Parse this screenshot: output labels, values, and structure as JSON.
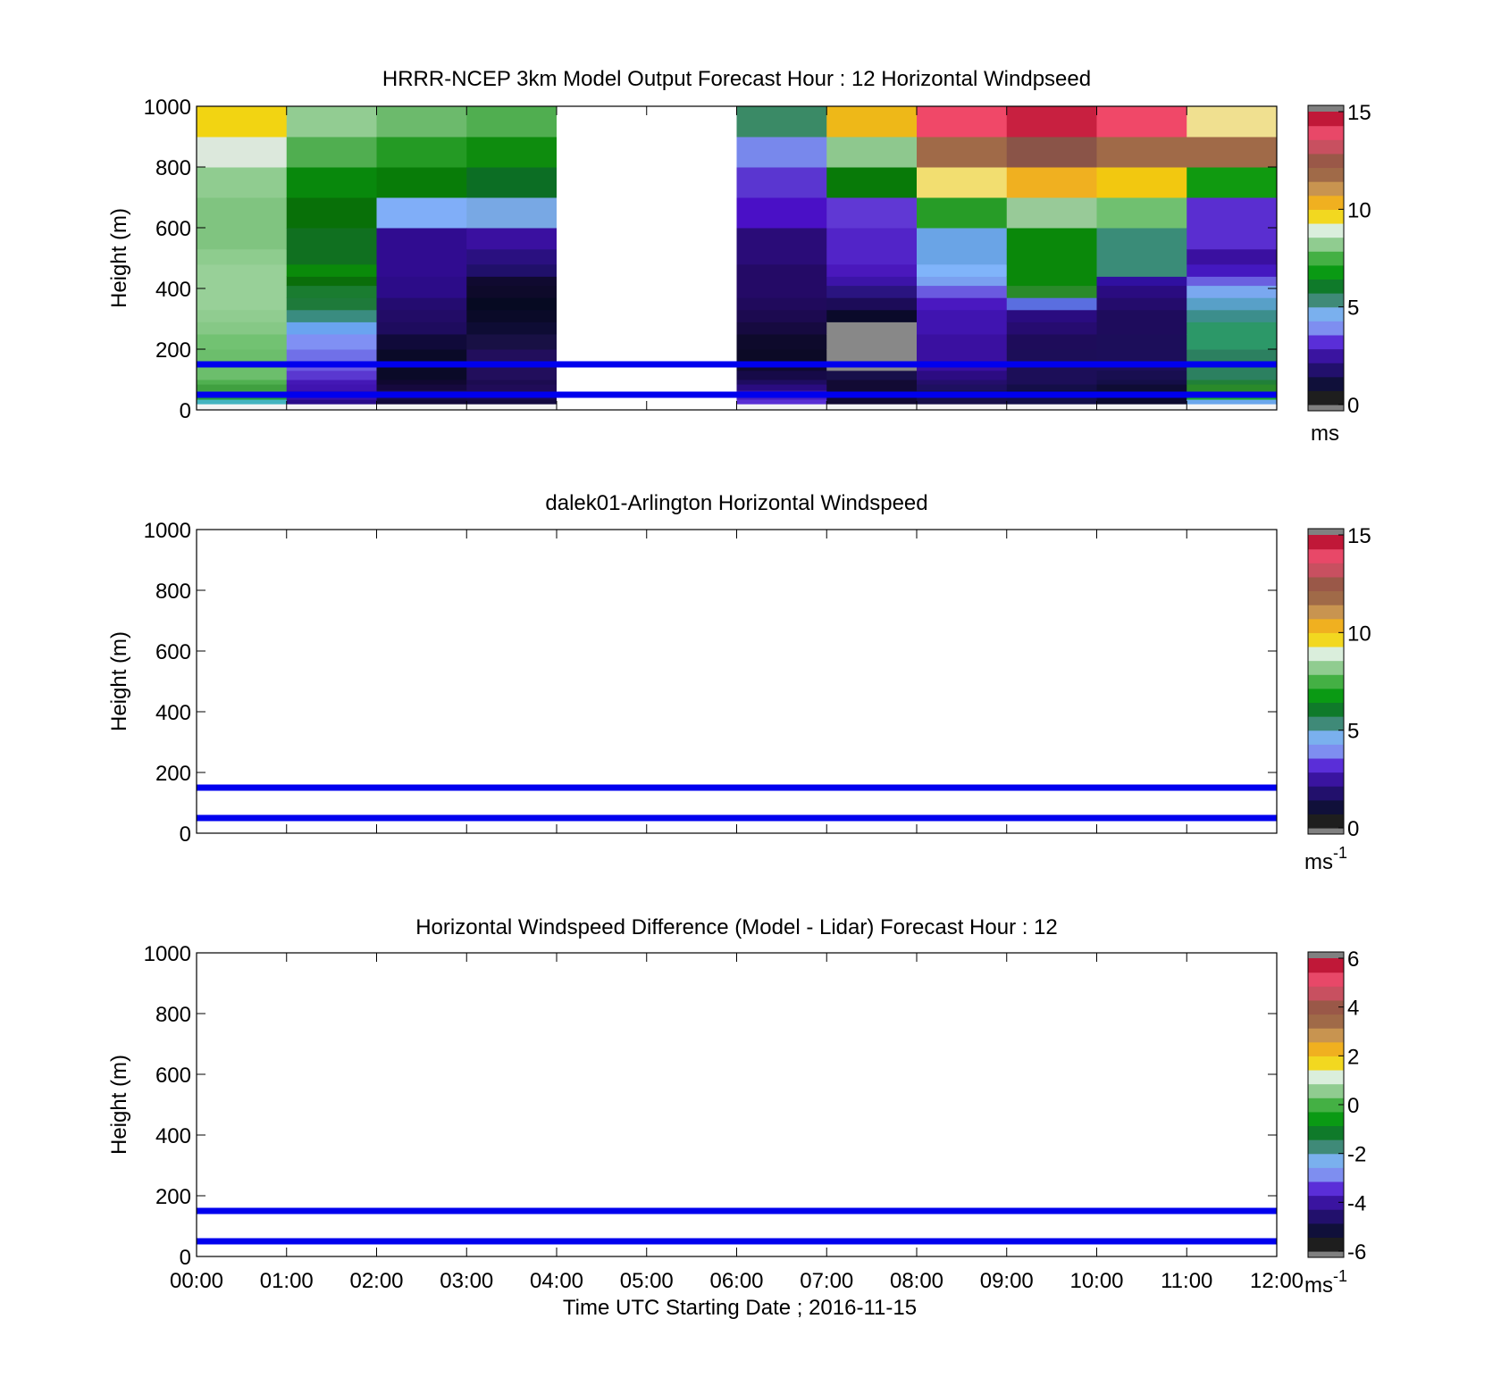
{
  "time_axis": {
    "ticks": [
      "00:00",
      "01:00",
      "02:00",
      "03:00",
      "04:00",
      "05:00",
      "06:00",
      "07:00",
      "08:00",
      "09:00",
      "10:00",
      "11:00",
      "12:00"
    ],
    "xlabel": "Time UTC  Starting Date ; 2016-11-15",
    "range_hours": [
      0,
      12
    ]
  },
  "palette": [
    "#1e1e1e",
    "#10103a",
    "#22106c",
    "#3a14a0",
    "#5a2ed8",
    "#7e8ef0",
    "#7ab0ee",
    "#3f8a78",
    "#0f7a2a",
    "#0a9a14",
    "#44b044",
    "#90cc90",
    "#daeedc",
    "#f2d820",
    "#f0b020",
    "#c89450",
    "#a06a48",
    "#9a5848",
    "#c85060",
    "#e84868",
    "#c01838",
    "#8a8a8a"
  ],
  "chart_data": [
    {
      "type": "heatmap",
      "title": "HRRR-NCEP 3km Model Output   Forecast Hour : 12 Horizontal Windpseed",
      "ylabel": "Height (m)",
      "xlim": [
        0,
        12
      ],
      "ylim": [
        0,
        1000
      ],
      "yticks": [
        "0",
        "200",
        "400",
        "600",
        "800",
        "1000"
      ],
      "colorbar": {
        "ticks": [
          "0",
          "5",
          "10",
          "15"
        ],
        "unit": "ms",
        "unit_sup": "",
        "range": [
          0,
          15
        ],
        "over_under_color": "#808080"
      },
      "reference_lines_m": [
        50,
        150
      ],
      "reference_line_color": "#0000ee",
      "heights_m": [
        0,
        20,
        35,
        50,
        65,
        85,
        100,
        130,
        150,
        200,
        250,
        290,
        330,
        370,
        410,
        440,
        480,
        530,
        600,
        700,
        800,
        900,
        1000
      ],
      "columns": [
        {
          "x0": 0,
          "x1": 1,
          "cells": [
            "#f4f4f4",
            "#44b4c0",
            "#2a9c3c",
            "#44a844",
            "#40a040",
            "#50b050",
            "#6cbe6c",
            "#6cbe6c",
            "#6cbe6c",
            "#72c272",
            "#86c886",
            "#90cc90",
            "#98d098",
            "#98d098",
            "#98d098",
            "#98d098",
            "#8ecc8e",
            "#80c480",
            "#80c480",
            "#90cc90",
            "#dce8dc",
            "#f2d412",
            "#eaa820"
          ]
        },
        {
          "x0": 1,
          "x1": 2,
          "cells": [
            "#f4f4f4",
            "#2a0c8a",
            "#3a10a8",
            "#3a10a8",
            "#4014b0",
            "#4418b6",
            "#5a38d0",
            "#6a5ae0",
            "#7070e8",
            "#8090f4",
            "#6aa4f0",
            "#3a8c80",
            "#1e7a3a",
            "#1a7c30",
            "#0a6e0a",
            "#0a8a0a",
            "#107020",
            "#107020",
            "#087008",
            "#08880c",
            "#50ae50",
            "#92cc92",
            "#aed6ae"
          ]
        },
        {
          "x0": 2,
          "x1": 3,
          "cells": [
            "#f4f4f4",
            "#12083a",
            "#1a0e4a",
            "#1e0e58",
            "#16093e",
            "#100830",
            "#0a0a28",
            "#0a0a28",
            "#0a0a28",
            "#100a3a",
            "#1e0c5e",
            "#220c66",
            "#240c70",
            "#2c0c88",
            "#2c0c88",
            "#300c90",
            "#300c90",
            "#300c90",
            "#80aef8",
            "#087c08",
            "#249a24",
            "#6cba6c",
            "#6cba6c"
          ]
        },
        {
          "x0": 3,
          "x1": 4,
          "cells": [
            "#f4f4f4",
            "#140a40",
            "#1c0c50",
            "#200c58",
            "#200c58",
            "#1c0c50",
            "#220e5c",
            "#220e5c",
            "#220e5c",
            "#181044",
            "#0e0c34",
            "#0a0a28",
            "#060a22",
            "#0e0a2a",
            "#100a30",
            "#20106a",
            "#2a1080",
            "#3a10a0",
            "#78a8e4",
            "#0c6e24",
            "#0e8c0e",
            "#50ae50",
            "#50ae50"
          ]
        },
        {
          "x0": 4,
          "x1": 6,
          "cells": [
            "#ffffff",
            "#ffffff",
            "#ffffff",
            "#ffffff",
            "#ffffff",
            "#ffffff",
            "#ffffff",
            "#ffffff",
            "#ffffff",
            "#ffffff",
            "#ffffff",
            "#ffffff",
            "#ffffff",
            "#ffffff",
            "#ffffff",
            "#ffffff",
            "#ffffff",
            "#ffffff",
            "#ffffff",
            "#ffffff",
            "#ffffff",
            "#ffffff",
            "#ffffff"
          ]
        },
        {
          "x0": 6,
          "x1": 7,
          "cells": [
            "#f4f4f4",
            "#5a30d4",
            "#4a20c0",
            "#3c14a8",
            "#2a0c80",
            "#1e0c60",
            "#160a48",
            "#100a30",
            "#0c0a26",
            "#0e0a2c",
            "#160a40",
            "#1c0a50",
            "#200a5c",
            "#240a66",
            "#240a66",
            "#240a66",
            "#2a0c78",
            "#2a0c78",
            "#4a10c6",
            "#5a36d0",
            "#7888ec",
            "#3a8a66",
            "#3a8a66"
          ]
        },
        {
          "x0": 7,
          "x1": 8,
          "cells": [
            "#f4f4f4",
            "#120a34",
            "#120a34",
            "#120a34",
            "#120a34",
            "#120a34",
            "#18104a",
            "#888888",
            "#888888",
            "#888888",
            "#888888",
            "#0a0a2a",
            "#1c0c58",
            "#2a1480",
            "#3c14a8",
            "#4a18bc",
            "#5224c8",
            "#5224c8",
            "#6038d4",
            "#087a08",
            "#8ec88e",
            "#eeb818",
            "#eeb818"
          ]
        },
        {
          "x0": 8,
          "x1": 9,
          "cells": [
            "#f4f4f4",
            "#18104a",
            "#18104a",
            "#18104a",
            "#1e1060",
            "#240e6c",
            "#2c0c82",
            "#3a10a0",
            "#3a10a0",
            "#3a10a0",
            "#4014b0",
            "#4014b0",
            "#4a18c0",
            "#6a5ae0",
            "#7aa0f0",
            "#80b4fa",
            "#6aa4e6",
            "#6aa4e6",
            "#279c27",
            "#f2de70",
            "#a06a48",
            "#f04868",
            "#f04868"
          ]
        },
        {
          "x0": 9,
          "x1": 10,
          "cells": [
            "#f4f4f4",
            "#14104a",
            "#14104a",
            "#0e0c38",
            "#140e48",
            "#1c0e58",
            "#1c0e58",
            "#1c0e58",
            "#1c0e58",
            "#1e0c5a",
            "#260c70",
            "#2a0c80",
            "#5a6ee0",
            "#2a8a2a",
            "#0a880a",
            "#0a880a",
            "#0a880a",
            "#0a880a",
            "#98ca98",
            "#f0b020",
            "#8a5448",
            "#c82040",
            "#c82040"
          ]
        },
        {
          "x0": 10,
          "x1": 11,
          "cells": [
            "#f4f4f4",
            "#0c0a30",
            "#0c0a30",
            "#0e0c34",
            "#0e0c34",
            "#140e48",
            "#180e50",
            "#1c0e5a",
            "#1c0e5a",
            "#1c0e5a",
            "#1e0c5c",
            "#1e0c5c",
            "#240c6c",
            "#2a0c80",
            "#3010a0",
            "#3a8c78",
            "#3a8c78",
            "#3a8c78",
            "#70c070",
            "#f2c810",
            "#a06a48",
            "#f04868",
            "#f04868"
          ]
        },
        {
          "x0": 11,
          "x1": 12,
          "cells": [
            "#f4f4f4",
            "#6aa6ec",
            "#20aa2a",
            "#2a8a2a",
            "#2a8a2a",
            "#208038",
            "#2c8060",
            "#2c8060",
            "#2c8060",
            "#2c9868",
            "#2c9868",
            "#3c8e8c",
            "#58a0c8",
            "#7aa8f0",
            "#6a60e0",
            "#4418c0",
            "#3a10a0",
            "#5a2ed0",
            "#5a2ed0",
            "#109a10",
            "#a06a48",
            "#f0e090",
            "#b04c5c"
          ]
        }
      ]
    },
    {
      "type": "heatmap",
      "title": "dalek01-Arlington  Horizontal Windspeed",
      "ylabel": "Height (m)",
      "xlim": [
        0,
        12
      ],
      "ylim": [
        0,
        1000
      ],
      "yticks": [
        "0",
        "200",
        "400",
        "600",
        "800",
        "1000"
      ],
      "colorbar": {
        "ticks": [
          "0",
          "5",
          "10",
          "15"
        ],
        "unit": "ms",
        "unit_sup": "-1",
        "range": [
          0,
          15
        ],
        "over_under_color": "#808080"
      },
      "reference_lines_m": [
        50,
        150
      ],
      "reference_line_color": "#0000ee",
      "columns": []
    },
    {
      "type": "heatmap",
      "title": "Horizontal Windspeed Difference (Model - Lidar) Forecast Hour : 12",
      "ylabel": "Height (m)",
      "xlim": [
        0,
        12
      ],
      "ylim": [
        0,
        1000
      ],
      "yticks": [
        "0",
        "200",
        "400",
        "600",
        "800",
        "1000"
      ],
      "colorbar": {
        "ticks": [
          "-6",
          "-4",
          "-2",
          "0",
          "2",
          "4",
          "6"
        ],
        "unit": "ms",
        "unit_sup": "-1",
        "range": [
          -6,
          6
        ],
        "over_under_color": "#808080"
      },
      "reference_lines_m": [
        50,
        150
      ],
      "reference_line_color": "#0000ee",
      "columns": []
    }
  ]
}
